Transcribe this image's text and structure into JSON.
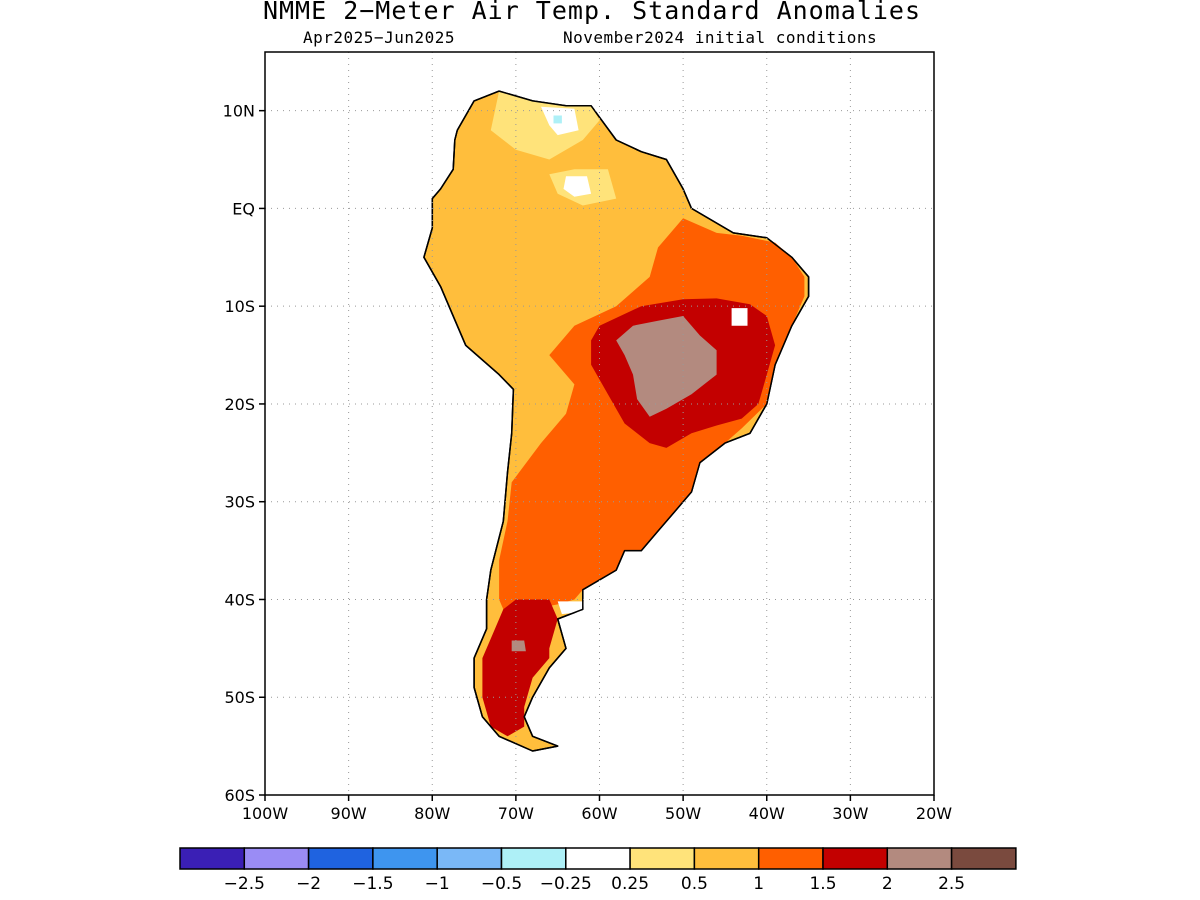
{
  "title": "NMME 2−Meter Air Temp. Standard Anomalies",
  "subtitle_left": "Apr2025−Jun2025",
  "subtitle_right": "November2024 initial conditions",
  "axes": {
    "lon_range": [
      -100,
      -20
    ],
    "lat_range": [
      -60,
      16
    ],
    "x_ticks": [
      {
        "value": -100,
        "label": "100W"
      },
      {
        "value": -90,
        "label": "90W"
      },
      {
        "value": -80,
        "label": "80W"
      },
      {
        "value": -70,
        "label": "70W"
      },
      {
        "value": -60,
        "label": "60W"
      },
      {
        "value": -50,
        "label": "50W"
      },
      {
        "value": -40,
        "label": "40W"
      },
      {
        "value": -30,
        "label": "30W"
      },
      {
        "value": -20,
        "label": "20W"
      }
    ],
    "y_ticks": [
      {
        "value": 10,
        "label": "10N"
      },
      {
        "value": 0,
        "label": "EQ"
      },
      {
        "value": -10,
        "label": "10S"
      },
      {
        "value": -20,
        "label": "20S"
      },
      {
        "value": -30,
        "label": "30S"
      },
      {
        "value": -40,
        "label": "40S"
      },
      {
        "value": -50,
        "label": "50S"
      },
      {
        "value": -60,
        "label": "60S"
      }
    ],
    "grid": "dotted"
  },
  "colorbar": {
    "colors": [
      "#3a1fb5",
      "#9a8cf5",
      "#1f63e0",
      "#3e95ef",
      "#7ab8f7",
      "#aef0f7",
      "#ffffff",
      "#ffe37a",
      "#ffbe3c",
      "#ff5f00",
      "#c30000",
      "#b38a7f",
      "#7a4a3e"
    ],
    "labels": [
      "−2.5",
      "−2",
      "−1.5",
      "−1",
      "−0.5",
      "−0.25",
      "0.25",
      "0.5",
      "1",
      "1.5",
      "2",
      "2.5"
    ]
  },
  "legend_colors": {
    "0.25 to 0.5": "#ffe37a",
    "0.5 to 1": "#ffbe3c",
    "1 to 1.5": "#ff5f00",
    "1.5 to 2": "#c30000",
    "2 to 2.5": "#b38a7f",
    "-0.5 to -0.25": "#aef0f7"
  },
  "map_regions": [
    {
      "name": "south-america-outline",
      "fill": "#ffbe3c",
      "points": [
        [
          -77,
          8
        ],
        [
          -75,
          11
        ],
        [
          -72,
          12
        ],
        [
          -68,
          11
        ],
        [
          -64,
          10.5
        ],
        [
          -61,
          10.5
        ],
        [
          -58,
          7
        ],
        [
          -55,
          5.8
        ],
        [
          -52,
          5
        ],
        [
          -50,
          2
        ],
        [
          -49,
          0
        ],
        [
          -44,
          -2.5
        ],
        [
          -40,
          -3
        ],
        [
          -37,
          -5
        ],
        [
          -35,
          -7
        ],
        [
          -35,
          -9
        ],
        [
          -37,
          -12
        ],
        [
          -39,
          -16
        ],
        [
          -40,
          -20
        ],
        [
          -42,
          -23
        ],
        [
          -45,
          -24
        ],
        [
          -48,
          -26
        ],
        [
          -49,
          -29
        ],
        [
          -51,
          -31
        ],
        [
          -53,
          -33
        ],
        [
          -55,
          -35
        ],
        [
          -57,
          -35
        ],
        [
          -58,
          -37
        ],
        [
          -62,
          -39
        ],
        [
          -62,
          -41
        ],
        [
          -65,
          -42
        ],
        [
          -64,
          -45
        ],
        [
          -66,
          -47
        ],
        [
          -68,
          -50
        ],
        [
          -69,
          -52
        ],
        [
          -68,
          -54
        ],
        [
          -65,
          -55
        ],
        [
          -68,
          -55.5
        ],
        [
          -72,
          -54
        ],
        [
          -74,
          -52
        ],
        [
          -75,
          -49
        ],
        [
          -75,
          -46
        ],
        [
          -73.5,
          -43
        ],
        [
          -73.5,
          -40
        ],
        [
          -73,
          -37
        ],
        [
          -71.5,
          -32
        ],
        [
          -71,
          -27
        ],
        [
          -70.5,
          -23
        ],
        [
          -70.3,
          -18.5
        ],
        [
          -72,
          -17
        ],
        [
          -76,
          -14
        ],
        [
          -77,
          -12
        ],
        [
          -79,
          -8
        ],
        [
          -81,
          -5
        ],
        [
          -80,
          -2
        ],
        [
          -80,
          1
        ],
        [
          -79,
          2
        ],
        [
          -77.5,
          4
        ],
        [
          -77.3,
          7
        ]
      ]
    },
    {
      "name": "light-yellow-north",
      "fill": "#ffe37a",
      "points": [
        [
          -72,
          12
        ],
        [
          -68,
          11
        ],
        [
          -64,
          10.5
        ],
        [
          -61,
          10.5
        ],
        [
          -60,
          9
        ],
        [
          -62,
          7
        ],
        [
          -66,
          5
        ],
        [
          -70,
          6
        ],
        [
          -73,
          8
        ]
      ]
    },
    {
      "name": "light-yellow-venezuela-south",
      "fill": "#ffe37a",
      "points": [
        [
          -66,
          3.5
        ],
        [
          -63,
          4
        ],
        [
          -59,
          4
        ],
        [
          -58,
          1
        ],
        [
          -62,
          0.3
        ],
        [
          -65,
          1.5
        ]
      ]
    },
    {
      "name": "white-patch-venezuela",
      "fill": "#ffffff",
      "points": [
        [
          -67,
          10.4
        ],
        [
          -63,
          10.2
        ],
        [
          -62.5,
          8
        ],
        [
          -65,
          7.5
        ],
        [
          -66,
          8.5
        ]
      ]
    },
    {
      "name": "white-patch-guiana",
      "fill": "#ffffff",
      "points": [
        [
          -64,
          3.3
        ],
        [
          -61.5,
          3.3
        ],
        [
          -61,
          1.5
        ],
        [
          -63,
          1.2
        ],
        [
          -64.3,
          2
        ]
      ]
    },
    {
      "name": "cyan-patch",
      "fill": "#aef0f7",
      "points": [
        [
          -65.5,
          9.5
        ],
        [
          -64.5,
          9.5
        ],
        [
          -64.5,
          8.7
        ],
        [
          -65.5,
          8.7
        ]
      ]
    },
    {
      "name": "orange-central-south",
      "fill": "#ff5f00",
      "points": [
        [
          -50,
          -1
        ],
        [
          -46,
          -2.5
        ],
        [
          -43,
          -2.8
        ],
        [
          -39,
          -3.5
        ],
        [
          -37,
          -5
        ],
        [
          -35.5,
          -7
        ],
        [
          -35.5,
          -9
        ],
        [
          -37,
          -12
        ],
        [
          -39,
          -16
        ],
        [
          -40,
          -20
        ],
        [
          -43,
          -22.5
        ],
        [
          -45,
          -24
        ],
        [
          -48,
          -26
        ],
        [
          -49,
          -29
        ],
        [
          -51,
          -31
        ],
        [
          -53,
          -33
        ],
        [
          -55,
          -35
        ],
        [
          -57,
          -35
        ],
        [
          -58,
          -37
        ],
        [
          -62,
          -39
        ],
        [
          -63,
          -40
        ],
        [
          -65,
          -40.5
        ],
        [
          -68,
          -41
        ],
        [
          -71,
          -42
        ],
        [
          -72,
          -40
        ],
        [
          -72,
          -36
        ],
        [
          -71,
          -32
        ],
        [
          -70.5,
          -28
        ],
        [
          -67,
          -24
        ],
        [
          -64,
          -21
        ],
        [
          -63,
          -18
        ],
        [
          -66,
          -15
        ],
        [
          -63,
          -12
        ],
        [
          -58,
          -10
        ],
        [
          -54,
          -7
        ],
        [
          -53,
          -4
        ]
      ]
    },
    {
      "name": "dark-red-brazil",
      "fill": "#c30000",
      "points": [
        [
          -60,
          -12
        ],
        [
          -55,
          -10
        ],
        [
          -50,
          -9.3
        ],
        [
          -46,
          -9.2
        ],
        [
          -42,
          -9.8
        ],
        [
          -40,
          -11
        ],
        [
          -39,
          -14
        ],
        [
          -40,
          -17
        ],
        [
          -41,
          -20
        ],
        [
          -43,
          -21.5
        ],
        [
          -46,
          -22.2
        ],
        [
          -49,
          -23
        ],
        [
          -52,
          -24.5
        ],
        [
          -54,
          -24
        ],
        [
          -57,
          -22
        ],
        [
          -59,
          -19
        ],
        [
          -61,
          -16
        ],
        [
          -61,
          -13.5
        ]
      ]
    },
    {
      "name": "dark-red-patagonia",
      "fill": "#c30000",
      "points": [
        [
          -70,
          -40
        ],
        [
          -66,
          -40
        ],
        [
          -65,
          -42
        ],
        [
          -66,
          -45
        ],
        [
          -66,
          -46
        ],
        [
          -68,
          -48
        ],
        [
          -69,
          -51
        ],
        [
          -69,
          -53
        ],
        [
          -71,
          -54
        ],
        [
          -73,
          -53
        ],
        [
          -74,
          -50
        ],
        [
          -74,
          -46
        ],
        [
          -72.5,
          -43
        ],
        [
          -71.5,
          -41
        ]
      ]
    },
    {
      "name": "mauve-brazil",
      "fill": "#b38a7f",
      "points": [
        [
          -58,
          -13.5
        ],
        [
          -56,
          -12
        ],
        [
          -53,
          -11.5
        ],
        [
          -50,
          -11
        ],
        [
          -48,
          -13
        ],
        [
          -46,
          -14.5
        ],
        [
          -46,
          -17
        ],
        [
          -49,
          -19
        ],
        [
          -52,
          -20.5
        ],
        [
          -54,
          -21.3
        ],
        [
          -55.5,
          -19.5
        ],
        [
          -56,
          -17
        ],
        [
          -57,
          -15
        ]
      ]
    },
    {
      "name": "mauve-patagonia",
      "fill": "#b38a7f",
      "points": [
        [
          -70.5,
          -44.2
        ],
        [
          -69,
          -44.2
        ],
        [
          -68.8,
          -45.3
        ],
        [
          -70.5,
          -45.3
        ]
      ]
    },
    {
      "name": "white-patch-east",
      "fill": "#ffffff",
      "points": [
        [
          -44.2,
          -10.2
        ],
        [
          -42.3,
          -10.2
        ],
        [
          -42.3,
          -12
        ],
        [
          -44.2,
          -12
        ]
      ]
    },
    {
      "name": "white-patch-south",
      "fill": "#ffffff",
      "points": [
        [
          -65,
          -40.2
        ],
        [
          -61.5,
          -40.2
        ],
        [
          -62.3,
          -41.3
        ],
        [
          -64.5,
          -41.5
        ]
      ]
    }
  ]
}
